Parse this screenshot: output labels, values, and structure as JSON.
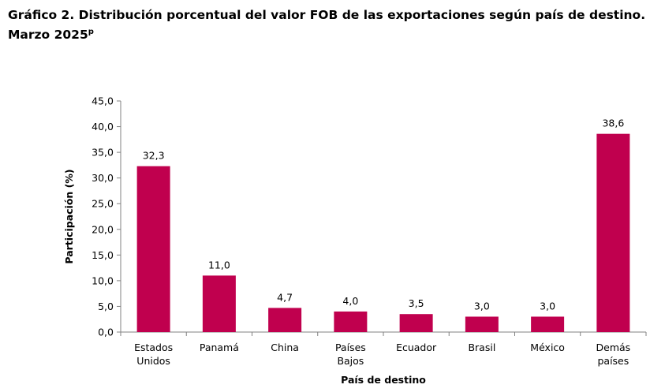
{
  "title": {
    "line1": "Gráfico 2. Distribución porcentual del valor FOB de las exportaciones según país de destino.",
    "line2": "Marzo 2025",
    "line2_sup": "p"
  },
  "colors": {
    "bar": "#C0004E",
    "axis": "#808080"
  },
  "chart_data": {
    "type": "bar",
    "categories": [
      [
        "Estados",
        "Unidos"
      ],
      [
        "Panamá"
      ],
      [
        "China"
      ],
      [
        "Países",
        "Bajos"
      ],
      [
        "Ecuador"
      ],
      [
        "Brasil"
      ],
      [
        "México"
      ],
      [
        "Demás",
        "países"
      ]
    ],
    "values": [
      32.3,
      11.0,
      4.7,
      4.0,
      3.5,
      3.0,
      3.0,
      38.6
    ],
    "data_labels": [
      "32,3",
      "11,0",
      "4,7",
      "4,0",
      "3,5",
      "3,0",
      "3,0",
      "38,6"
    ],
    "xlabel": "País de destino",
    "ylabel": "Participación (%)",
    "ylim": [
      0,
      45
    ],
    "yticks": [
      0,
      5,
      10,
      15,
      20,
      25,
      30,
      35,
      40,
      45
    ],
    "ytick_labels": [
      "0,0",
      "5,0",
      "10,0",
      "15,0",
      "20,0",
      "25,0",
      "30,0",
      "35,0",
      "40,0",
      "45,0"
    ],
    "grid": false,
    "legend": "none"
  }
}
